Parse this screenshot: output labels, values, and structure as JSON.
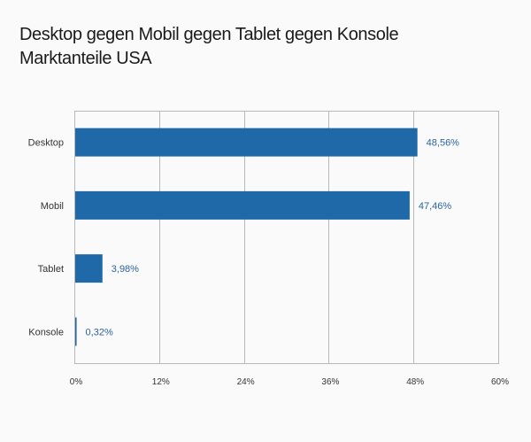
{
  "chart_data": {
    "type": "bar",
    "orientation": "horizontal",
    "title": [
      "Desktop gegen Mobil gegen Tablet gegen Konsole",
      "Marktanteile USA"
    ],
    "xlabel": "",
    "ylabel": "",
    "categories": [
      "Desktop",
      "Mobil",
      "Tablet",
      "Konsole"
    ],
    "values": [
      48.56,
      47.46,
      3.98,
      0.32
    ],
    "data_labels": [
      "48,56%",
      "47,46%",
      "3,98%",
      "0,32%"
    ],
    "xlim": [
      0,
      60
    ],
    "x_ticks": [
      0,
      12,
      24,
      36,
      48,
      60
    ],
    "x_tick_labels": [
      "0%",
      "12%",
      "24%",
      "36%",
      "48%",
      "60%"
    ],
    "grid": true,
    "legend": "none",
    "colors": {
      "bar": "#1f69a8",
      "data_label": "#2a63a0",
      "grid": "#b8b8b8",
      "background": "#fafafa"
    }
  }
}
